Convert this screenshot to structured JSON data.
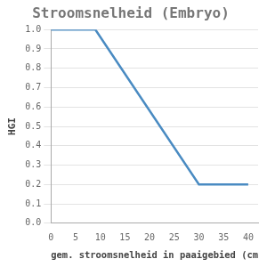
{
  "chart_data": {
    "type": "line",
    "title": "Stroomsnelheid (Embryo)",
    "x_label": "gem. stroomsnelheid in paaigebied (cm",
    "y_label": "HGI",
    "x": [
      0,
      9,
      30,
      40
    ],
    "values": [
      1.0,
      1.0,
      0.2,
      0.2
    ],
    "color": "#4a8bc2",
    "xlim": [
      0,
      42
    ],
    "xticks": [
      0,
      5,
      10,
      15,
      20,
      25,
      30,
      35,
      40
    ],
    "ylim": [
      0,
      1
    ],
    "yticks": [
      {
        "value": 0,
        "label": "0.0"
      },
      {
        "value": 0.1,
        "label": "0.1"
      },
      {
        "value": 0.2,
        "label": "0.2"
      },
      {
        "value": 0.3,
        "label": "0.3"
      },
      {
        "value": 0.4,
        "label": "0.4"
      },
      {
        "value": 0.5,
        "label": "0.5"
      },
      {
        "value": 0.6,
        "label": "0.6"
      },
      {
        "value": 0.7,
        "label": "0.7"
      },
      {
        "value": 0.8,
        "label": "0.8"
      },
      {
        "value": 0.9,
        "label": "0.9"
      },
      {
        "value": 1,
        "label": "1.0"
      }
    ],
    "grid": true
  }
}
